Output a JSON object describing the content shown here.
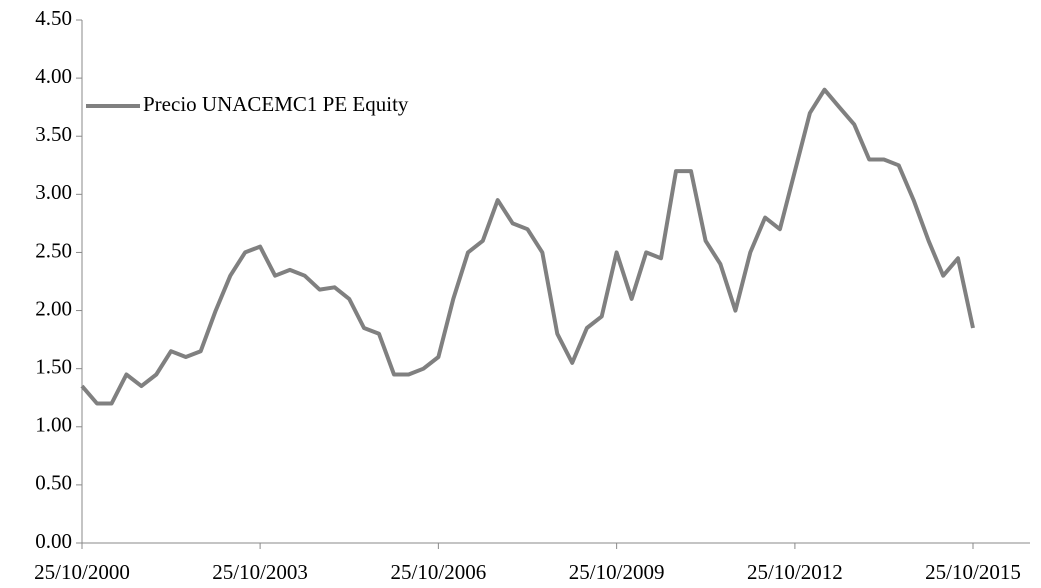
{
  "chart_data": {
    "type": "line",
    "x": [
      "25/10/2000",
      "25/01/2001",
      "25/04/2001",
      "25/07/2001",
      "25/10/2001",
      "25/01/2002",
      "25/04/2002",
      "25/07/2002",
      "25/10/2002",
      "25/01/2003",
      "25/04/2003",
      "25/07/2003",
      "25/10/2003",
      "25/01/2004",
      "25/04/2004",
      "25/07/2004",
      "25/10/2004",
      "25/01/2005",
      "25/04/2005",
      "25/07/2005",
      "25/10/2005",
      "25/01/2006",
      "25/04/2006",
      "25/07/2006",
      "25/10/2006",
      "25/01/2007",
      "25/04/2007",
      "25/07/2007",
      "25/10/2007",
      "25/01/2008",
      "25/04/2008",
      "25/07/2008",
      "25/10/2008",
      "25/01/2009",
      "25/04/2009",
      "25/07/2009",
      "25/10/2009",
      "25/01/2010",
      "25/04/2010",
      "25/07/2010",
      "25/10/2010",
      "25/01/2011",
      "25/04/2011",
      "25/07/2011",
      "25/10/2011",
      "25/01/2012",
      "25/04/2012",
      "25/07/2012",
      "25/10/2012",
      "25/01/2013",
      "25/04/2013",
      "25/07/2013",
      "25/10/2013",
      "25/01/2014",
      "25/04/2014",
      "25/07/2014",
      "25/10/2014",
      "25/01/2015",
      "25/04/2015",
      "25/07/2015",
      "25/10/2015"
    ],
    "series": [
      {
        "name": "Precio UNACEMC1 PE Equity",
        "color": "#808080",
        "values": [
          1.35,
          1.2,
          1.2,
          1.45,
          1.35,
          1.45,
          1.65,
          1.6,
          1.65,
          2.0,
          2.3,
          2.5,
          2.55,
          2.3,
          2.35,
          2.3,
          2.18,
          2.2,
          2.1,
          1.85,
          1.8,
          1.45,
          1.45,
          1.5,
          1.6,
          2.1,
          2.5,
          2.6,
          2.95,
          2.75,
          2.7,
          2.5,
          1.8,
          1.55,
          1.85,
          1.95,
          2.5,
          2.1,
          2.5,
          2.45,
          3.2,
          3.2,
          2.6,
          2.4,
          2.0,
          2.5,
          2.8,
          2.7,
          3.2,
          3.7,
          3.9,
          3.75,
          3.6,
          3.3,
          3.3,
          3.25,
          2.95,
          2.6,
          2.3,
          2.45,
          1.85
        ]
      }
    ],
    "xlim": [
      "25/10/2000",
      "25/10/2015"
    ],
    "xticks": [
      "25/10/2000",
      "25/10/2003",
      "25/10/2006",
      "25/10/2009",
      "25/10/2012",
      "25/10/2015"
    ],
    "ylim": [
      0,
      4.5
    ],
    "yticks": [
      {
        "value": 0,
        "label": "0.00"
      },
      {
        "value": 0.5,
        "label": "0.50"
      },
      {
        "value": 1,
        "label": "1.00"
      },
      {
        "value": 1.5,
        "label": "1.50"
      },
      {
        "value": 2,
        "label": "2.00"
      },
      {
        "value": 2.5,
        "label": "2.50"
      },
      {
        "value": 3,
        "label": "3.00"
      },
      {
        "value": 3.5,
        "label": "3.50"
      },
      {
        "value": 4,
        "label": "4.00"
      },
      {
        "value": 4.5,
        "label": "4.50"
      }
    ],
    "legend": "top-left"
  }
}
